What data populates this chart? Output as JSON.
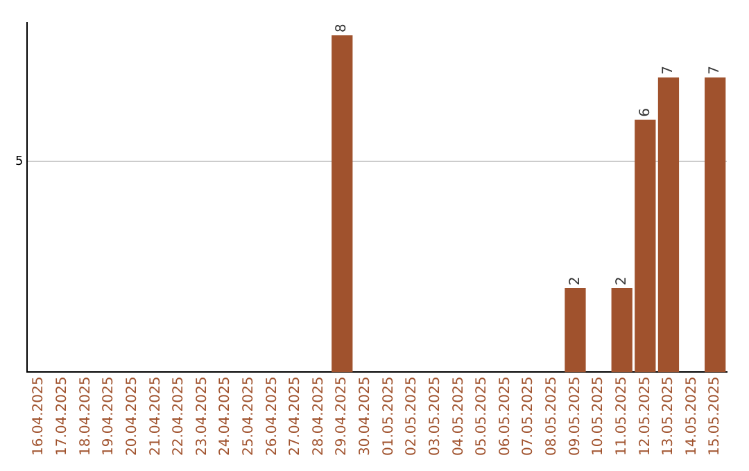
{
  "chart_data": {
    "type": "bar",
    "categories": [
      "16.04.2025",
      "17.04.2025",
      "18.04.2025",
      "19.04.2025",
      "20.04.2025",
      "21.04.2025",
      "22.04.2025",
      "23.04.2025",
      "24.04.2025",
      "25.04.2025",
      "26.04.2025",
      "27.04.2025",
      "28.04.2025",
      "29.04.2025",
      "30.04.2025",
      "01.05.2025",
      "02.05.2025",
      "03.05.2025",
      "04.05.2025",
      "05.05.2025",
      "06.05.2025",
      "07.05.2025",
      "08.05.2025",
      "09.05.2025",
      "10.05.2025",
      "11.05.2025",
      "12.05.2025",
      "13.05.2025",
      "14.05.2025",
      "15.05.2025"
    ],
    "values": [
      null,
      null,
      null,
      null,
      null,
      null,
      null,
      null,
      null,
      null,
      null,
      null,
      null,
      8,
      null,
      null,
      null,
      null,
      null,
      null,
      null,
      null,
      null,
      2,
      null,
      2,
      6,
      7,
      null,
      7
    ],
    "color": "#a0522d",
    "ylim": [
      0,
      8.3
    ],
    "yticks": [
      5
    ],
    "grid": "y",
    "data_labels": true
  }
}
